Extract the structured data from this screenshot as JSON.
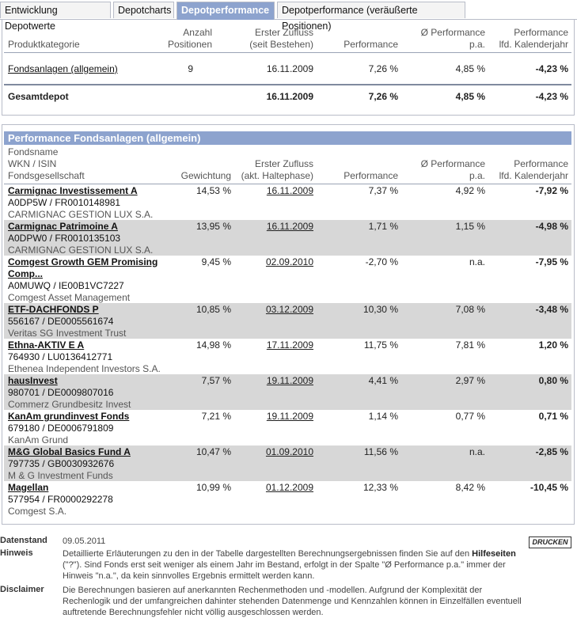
{
  "tabs": [
    {
      "label": "Entwicklung Depotwerte",
      "active": false
    },
    {
      "label": "Depotcharts",
      "active": false
    },
    {
      "label": "Depotperformance",
      "active": true
    },
    {
      "label": "Depotperformance (veräußerte Positionen)",
      "active": false
    }
  ],
  "summary": {
    "headers": {
      "kategorie": "Produktkategorie",
      "anzahl_1": "Anzahl",
      "anzahl_2": "Positionen",
      "zufluss_1": "Erster Zufluss",
      "zufluss_2": "(seit Bestehen)",
      "performance": "Performance",
      "pa_1": "Ø Performance",
      "pa_2": "p.a.",
      "kj_1": "Performance",
      "kj_2": "lfd. Kalenderjahr"
    },
    "row": {
      "kategorie": "Fondsanlagen (allgemein)",
      "anzahl": "9",
      "zufluss": "16.11.2009",
      "performance": "7,26 %",
      "pa": "4,85 %",
      "kj": "-4,23 %"
    },
    "total": {
      "label": "Gesamtdepot",
      "zufluss": "16.11.2009",
      "performance": "7,26 %",
      "pa": "4,85 %",
      "kj": "-4,23 %"
    }
  },
  "funds_section": {
    "title": "Performance Fondsanlagen (allgemein)",
    "headers": {
      "name_1": "Fondsname",
      "name_2": "WKN / ISIN",
      "name_3": "Fondsgesellschaft",
      "gewichtung": "Gewichtung",
      "zufluss_1": "Erster Zufluss",
      "zufluss_2": "(akt. Haltephase)",
      "performance": "Performance",
      "pa_1": "Ø Performance",
      "pa_2": "p.a.",
      "kj_1": "Performance",
      "kj_2": "lfd. Kalenderjahr"
    },
    "funds": [
      {
        "name": "Carmignac Investissement A",
        "name2": "",
        "wkn": "A0DP5W / FR0010148981",
        "kag": "CARMIGNAC GESTION LUX S.A.",
        "gewichtung": "14,53 %",
        "zufluss": "16.11.2009",
        "performance": "7,37 %",
        "pa": "4,92 %",
        "kj": "-7,92 %"
      },
      {
        "name": "Carmignac Patrimoine A",
        "name2": "",
        "wkn": "A0DPW0 / FR0010135103",
        "kag": "CARMIGNAC GESTION LUX S.A.",
        "gewichtung": "13,95 %",
        "zufluss": "16.11.2009",
        "performance": "1,71 %",
        "pa": "1,15 %",
        "kj": "-4,98 %"
      },
      {
        "name": "Comgest Growth GEM Promising",
        "name2": "Comp...",
        "wkn": "A0MUWQ / IE00B1VC7227",
        "kag": "Comgest Asset Management",
        "gewichtung": "9,45 %",
        "zufluss": "02.09.2010",
        "performance": "-2,70 %",
        "pa": "n.a.",
        "kj": "-7,95 %"
      },
      {
        "name": "ETF-DACHFONDS P",
        "name2": "",
        "wkn": "556167 / DE0005561674",
        "kag": "Veritas SG Investment Trust",
        "gewichtung": "10,85 %",
        "zufluss": "03.12.2009",
        "performance": "10,30 %",
        "pa": "7,08 %",
        "kj": "-3,48 %"
      },
      {
        "name": "Ethna-AKTIV E A",
        "name2": "",
        "wkn": "764930 / LU0136412771",
        "kag": "Ethenea Independent Investors S.A.",
        "gewichtung": "14,98 %",
        "zufluss": "17.11.2009",
        "performance": "11,75 %",
        "pa": "7,81 %",
        "kj": "1,20 %"
      },
      {
        "name": "hausInvest",
        "name2": "",
        "wkn": "980701 / DE0009807016",
        "kag": "Commerz Grundbesitz Invest",
        "gewichtung": "7,57 %",
        "zufluss": "19.11.2009",
        "performance": "4,41 %",
        "pa": "2,97 %",
        "kj": "0,80 %"
      },
      {
        "name": "KanAm grundinvest Fonds",
        "name2": "",
        "wkn": "679180 / DE0006791809",
        "kag": "KanAm Grund",
        "gewichtung": "7,21 %",
        "zufluss": "19.11.2009",
        "performance": "1,14 %",
        "pa": "0,77 %",
        "kj": "0,71 %"
      },
      {
        "name": "M&G Global Basics Fund A",
        "name2": "",
        "wkn": "797735 / GB0030932676",
        "kag": "M & G Investment Funds",
        "gewichtung": "10,47 %",
        "zufluss": "01.09.2010",
        "performance": "11,56 %",
        "pa": "n.a.",
        "kj": "-2,85 %"
      },
      {
        "name": "Magellan",
        "name2": "",
        "wkn": "577954 / FR0000292278",
        "kag": "Comgest S.A.",
        "gewichtung": "10,99 %",
        "zufluss": "01.12.2009",
        "performance": "12,33 %",
        "pa": "8,42 %",
        "kj": "-10,45 %"
      }
    ]
  },
  "footer": {
    "datenstand_label": "Datenstand",
    "datenstand_value": "09.05.2011",
    "hinweis_label": "Hinweis",
    "hinweis_line1_pre": "Detaillierte Erläuterungen zu den in der Tabelle dargestellten Berechnungsergebnissen finden Sie auf den ",
    "hinweis_link": "Hilfeseiten",
    "hinweis_line2": "(\"?\"). Sind Fonds erst seit weniger als einem Jahr im Bestand, erfolgt in der Spalte \"Ø Performance p.a.\" immer der",
    "hinweis_line3": "Hinweis \"n.a.\", da kein sinnvolles Ergebnis ermittelt werden kann.",
    "disclaimer_label": "Disclaimer",
    "disclaimer_line1": "Die Berechnungen basieren auf anerkannten Rechenmethoden und -modellen. Aufgrund der Komplexität der",
    "disclaimer_line2": "Rechenlogik und der umfangreichen dahinter stehenden Datenmenge und Kennzahlen können in Einzelfällen eventuell",
    "disclaimer_line3": "auftretende Berechnungsfehler nicht völlig ausgeschlossen werden.",
    "print_label": "DRUCKEN"
  }
}
